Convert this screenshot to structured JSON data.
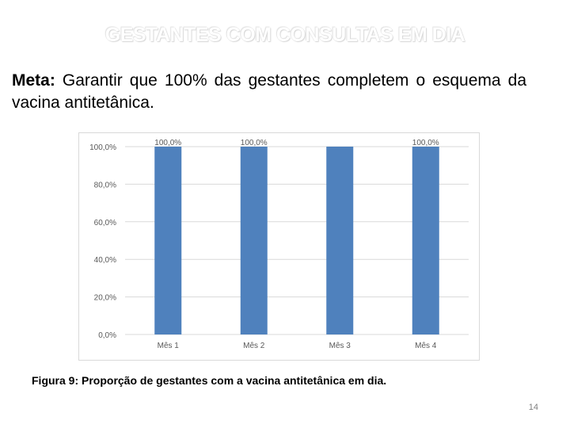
{
  "slide": {
    "title": "GESTANTES COM CONSULTAS EM DIA",
    "goal_label": "Meta:",
    "goal_text": " Garantir que 100% das gestantes completem o esquema da vacina antitetânica.",
    "caption": "Figura 9: Proporção de gestantes com a vacina antitetânica em dia.",
    "page_number": "14"
  },
  "chart_data": {
    "type": "bar",
    "categories": [
      "Mês 1",
      "Mês 2",
      "Mês 3",
      "Mês 4"
    ],
    "values": [
      100,
      100,
      100,
      100
    ],
    "data_labels": [
      "100,0%",
      "100,0%",
      "",
      "100,0%"
    ],
    "title": "",
    "xlabel": "",
    "ylabel": "",
    "ylim": [
      0,
      100
    ],
    "yticks": [
      "0,0%",
      "20,0%",
      "40,0%",
      "60,0%",
      "80,0%",
      "100,0%"
    ],
    "grid": true,
    "bar_color": "#4f81bd",
    "grid_color": "#d9d9d9",
    "label_color": "#595959"
  }
}
